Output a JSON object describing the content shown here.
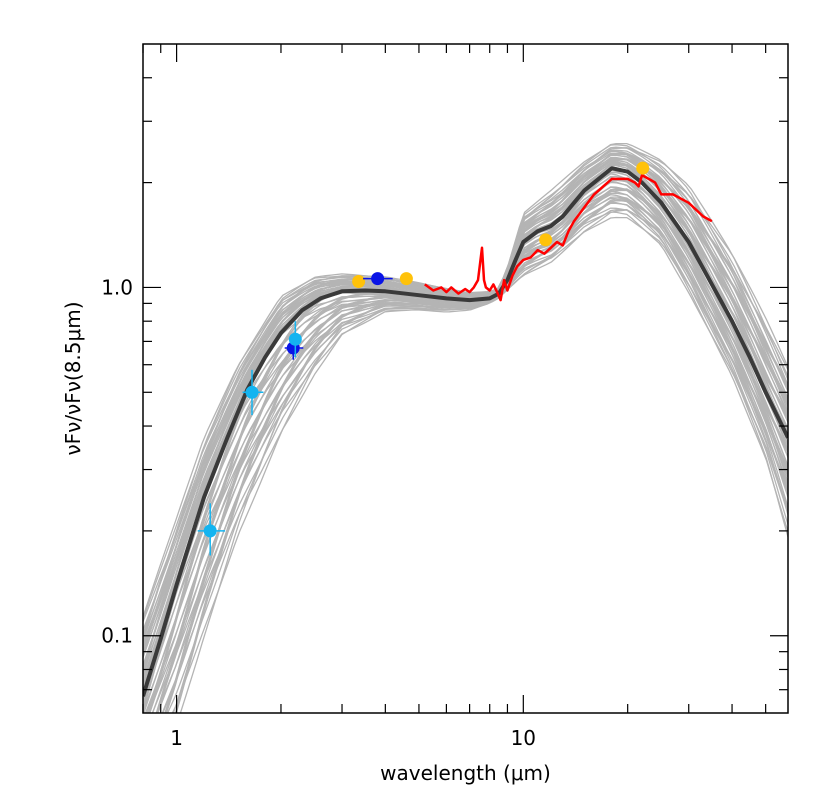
{
  "chart_data": {
    "type": "line",
    "title": "",
    "xlabel": "wavelength (μm)",
    "ylabel": "νFν/νFν(8.5μm)",
    "xscale": "log",
    "yscale": "log",
    "xlim": [
      0.8,
      58
    ],
    "ylim": [
      0.06,
      5.0
    ],
    "x_tick_labels": [
      {
        "value": 1,
        "label": "1"
      },
      {
        "value": 10,
        "label": "10"
      }
    ],
    "y_tick_labels": [
      {
        "value": 0.1,
        "label": "0.1"
      },
      {
        "value": 1.0,
        "label": "1.0"
      }
    ],
    "grid": false,
    "colors": {
      "model_grid": "#b4b4b4",
      "best_fit": "#3a3a3a",
      "spectrum": "#ff0000",
      "photometry_orange": "#ffc20a",
      "photometry_blue": "#0a14e6",
      "photometry_cyan": "#14b4f0"
    },
    "series": [
      {
        "role": "best-fit-model",
        "x": [
          0.8,
          0.9,
          1.0,
          1.1,
          1.2,
          1.4,
          1.6,
          1.8,
          2.0,
          2.3,
          2.6,
          3.0,
          3.5,
          4.0,
          5.0,
          6.0,
          7.0,
          8.0,
          8.5,
          9.0,
          9.5,
          10.0,
          11.0,
          12.0,
          13.0,
          14.0,
          15.0,
          17.0,
          18.0,
          20.0,
          22.0,
          25.0,
          30.0,
          35.0,
          40.0,
          45.0,
          50.0,
          58.0
        ],
        "y": [
          0.067,
          0.098,
          0.14,
          0.19,
          0.25,
          0.37,
          0.51,
          0.63,
          0.74,
          0.86,
          0.93,
          0.975,
          0.98,
          0.975,
          0.95,
          0.93,
          0.92,
          0.93,
          0.96,
          1.05,
          1.2,
          1.35,
          1.45,
          1.5,
          1.6,
          1.75,
          1.9,
          2.1,
          2.2,
          2.15,
          2.0,
          1.75,
          1.35,
          1.02,
          0.8,
          0.63,
          0.5,
          0.37
        ]
      },
      {
        "role": "spectrum",
        "x": [
          5.2,
          5.5,
          5.8,
          6.0,
          6.2,
          6.5,
          6.8,
          7.0,
          7.2,
          7.4,
          7.6,
          7.7,
          7.8,
          8.0,
          8.2,
          8.4,
          8.6,
          8.8,
          9.0,
          9.3,
          9.6,
          10.0,
          10.5,
          11.0,
          11.5,
          12.0,
          12.5,
          13.0,
          13.5,
          14.0,
          15.0,
          16.0,
          17.0,
          18.0,
          19.0,
          20.0,
          21.0,
          21.5,
          22.0,
          23.0,
          24.0,
          25.0,
          27.0,
          30.0,
          33.0,
          35.0
        ],
        "y": [
          1.02,
          0.98,
          1.0,
          0.97,
          1.0,
          0.96,
          0.99,
          0.97,
          1.0,
          1.05,
          1.3,
          1.05,
          1.0,
          0.98,
          1.02,
          0.97,
          0.92,
          1.05,
          0.98,
          1.08,
          1.15,
          1.2,
          1.22,
          1.28,
          1.25,
          1.3,
          1.35,
          1.32,
          1.45,
          1.55,
          1.7,
          1.85,
          1.95,
          2.05,
          2.05,
          2.05,
          2.0,
          1.95,
          2.1,
          2.05,
          2.0,
          1.85,
          1.85,
          1.75,
          1.6,
          1.55
        ]
      }
    ],
    "model_grid_envelope": {
      "x": [
        0.8,
        1.0,
        1.2,
        1.5,
        2.0,
        2.5,
        3.0,
        4.0,
        5.0,
        6.0,
        7.0,
        8.0,
        8.5,
        9.0,
        10.0,
        12.0,
        15.0,
        18.0,
        20.0,
        25.0,
        30.0,
        40.0,
        50.0,
        58.0
      ],
      "upper": [
        0.12,
        0.22,
        0.37,
        0.6,
        0.95,
        1.08,
        1.1,
        1.08,
        1.04,
        1.0,
        0.97,
        0.98,
        1.0,
        1.15,
        1.65,
        1.9,
        2.3,
        2.6,
        2.6,
        2.35,
        2.0,
        1.3,
        0.85,
        0.62
      ],
      "lower": [
        0.03,
        0.05,
        0.09,
        0.18,
        0.36,
        0.55,
        0.72,
        0.85,
        0.86,
        0.85,
        0.86,
        0.9,
        0.93,
        0.98,
        1.05,
        1.15,
        1.4,
        1.55,
        1.55,
        1.3,
        0.95,
        0.55,
        0.32,
        0.19
      ]
    },
    "photometry": [
      {
        "x": 1.25,
        "y": 0.2,
        "xerr": [
          1.15,
          1.38
        ],
        "yerr": [
          0.17,
          0.24
        ],
        "color": "cyan"
      },
      {
        "x": 1.65,
        "y": 0.5,
        "xerr": [
          1.55,
          1.78
        ],
        "yerr": [
          0.43,
          0.58
        ],
        "color": "cyan"
      },
      {
        "x": 2.17,
        "y": 0.67,
        "xerr": [
          2.05,
          2.32
        ],
        "yerr": [
          0.62,
          0.72
        ],
        "color": "blue"
      },
      {
        "x": 2.2,
        "y": 0.71,
        "xerr": [
          2.14,
          2.26
        ],
        "yerr": [
          0.63,
          0.8
        ],
        "color": "cyan"
      },
      {
        "x": 3.35,
        "y": 1.04,
        "color": "orange"
      },
      {
        "x": 3.8,
        "y": 1.06,
        "xerr": [
          3.45,
          4.2
        ],
        "color": "blue"
      },
      {
        "x": 4.6,
        "y": 1.06,
        "color": "orange"
      },
      {
        "x": 11.6,
        "y": 1.37,
        "color": "orange"
      },
      {
        "x": 22.1,
        "y": 2.2,
        "color": "orange"
      }
    ]
  }
}
